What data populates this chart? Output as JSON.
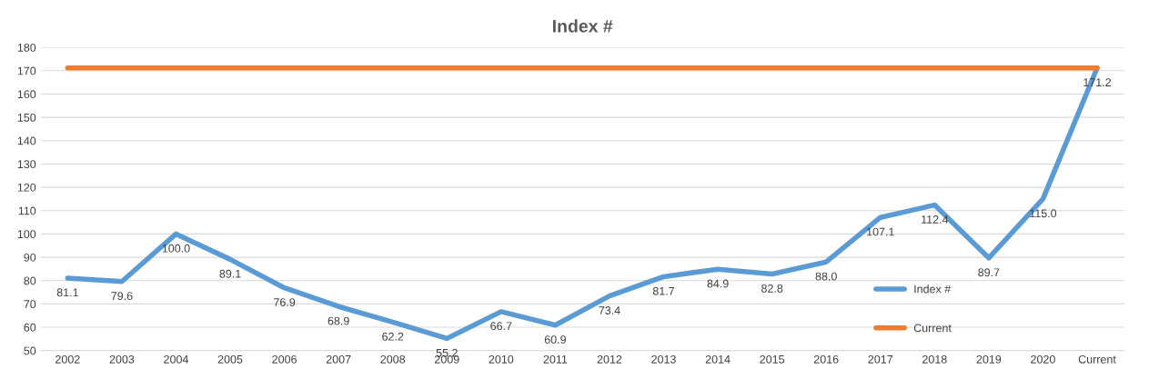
{
  "chart_data": {
    "type": "line",
    "title": "Index #",
    "categories": [
      "2002",
      "2003",
      "2004",
      "2005",
      "2006",
      "2007",
      "2008",
      "2009",
      "2010",
      "2011",
      "2012",
      "2013",
      "2014",
      "2015",
      "2016",
      "2017",
      "2018",
      "2019",
      "2020",
      "Current"
    ],
    "series": [
      {
        "name": "Index #",
        "color": "#5b9bd5",
        "values": [
          81.1,
          79.6,
          100.0,
          89.1,
          76.9,
          68.9,
          62.2,
          55.2,
          66.7,
          60.9,
          73.4,
          81.7,
          84.9,
          82.8,
          88.0,
          107.1,
          112.4,
          89.7,
          115.0,
          171.2
        ],
        "value_labels": [
          "81.1",
          "79.6",
          "100.0",
          "89.1",
          "76.9",
          "68.9",
          "62.2",
          "55.2",
          "66.7",
          "60.9",
          "73.4",
          "81.7",
          "84.9",
          "82.8",
          "88.0",
          "107.1",
          "112.4",
          "89.7",
          "115.0",
          "171.2"
        ]
      },
      {
        "name": "Current",
        "color": "#ed7d31",
        "values": [
          171.2,
          171.2,
          171.2,
          171.2,
          171.2,
          171.2,
          171.2,
          171.2,
          171.2,
          171.2,
          171.2,
          171.2,
          171.2,
          171.2,
          171.2,
          171.2,
          171.2,
          171.2,
          171.2,
          171.2
        ]
      }
    ],
    "ylim": [
      50,
      180
    ],
    "yticks": [
      50,
      60,
      70,
      80,
      90,
      100,
      110,
      120,
      130,
      140,
      150,
      160,
      170,
      180
    ],
    "grid": "y",
    "legend": "bottom right",
    "marker": "none",
    "line_style": "solid"
  }
}
